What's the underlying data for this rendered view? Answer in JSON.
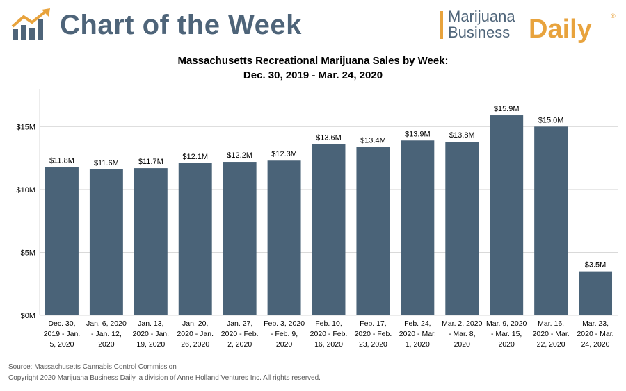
{
  "header": {
    "title": "Chart of the Week",
    "logo_icon": "bar-chart-arrow-icon",
    "brand": {
      "line1": "Marijuana",
      "line2": "Business",
      "daily": "Daily",
      "reg": "®"
    }
  },
  "colors": {
    "bar": "#4a6378",
    "accent": "#e8a33d",
    "title_blue": "#4e6479",
    "grid": "#d9d9d9"
  },
  "chart_data": {
    "type": "bar",
    "title": "Massachusetts Recreational Marijuana Sales by Week:",
    "subtitle": "Dec. 30, 2019 - Mar. 24, 2020",
    "xlabel": "",
    "ylabel": "",
    "ylim": [
      0,
      18
    ],
    "yticks": [
      0,
      5,
      10,
      15
    ],
    "ytick_labels": [
      "$0M",
      "$5M",
      "$10M",
      "$15M"
    ],
    "grid": true,
    "categories": [
      [
        "Dec. 30,",
        "2019 - Jan.",
        "5, 2020"
      ],
      [
        "Jan. 6, 2020",
        "- Jan. 12,",
        "2020"
      ],
      [
        "Jan. 13,",
        "2020 - Jan.",
        "19, 2020"
      ],
      [
        "Jan. 20,",
        "2020 - Jan.",
        "26, 2020"
      ],
      [
        "Jan. 27,",
        "2020 - Feb.",
        "2, 2020"
      ],
      [
        "Feb. 3, 2020",
        "- Feb. 9,",
        "2020"
      ],
      [
        "Feb. 10,",
        "2020 - Feb.",
        "16, 2020"
      ],
      [
        "Feb. 17,",
        "2020 - Feb.",
        "23, 2020"
      ],
      [
        "Feb. 24,",
        "2020 - Mar.",
        "1, 2020"
      ],
      [
        "Mar. 2, 2020",
        "- Mar. 8,",
        "2020"
      ],
      [
        "Mar. 9, 2020",
        "- Mar. 15,",
        "2020"
      ],
      [
        "Mar. 16,",
        "2020 - Mar.",
        "22, 2020"
      ],
      [
        "Mar. 23,",
        "2020 - Mar.",
        "24, 2020"
      ]
    ],
    "values": [
      11.8,
      11.6,
      11.7,
      12.1,
      12.2,
      12.3,
      13.6,
      13.4,
      13.9,
      13.8,
      15.9,
      15.0,
      3.5
    ],
    "data_labels": [
      "$11.8M",
      "$11.6M",
      "$11.7M",
      "$12.1M",
      "$12.2M",
      "$12.3M",
      "$13.6M",
      "$13.4M",
      "$13.9M",
      "$13.8M",
      "$15.9M",
      "$15.0M",
      "$3.5M"
    ]
  },
  "footer": {
    "source": "Source: Massachusetts Cannabis Control Commission",
    "copyright": "Copyright 2020 Marijuana Business Daily, a division of Anne Holland Ventures Inc. All rights reserved."
  }
}
